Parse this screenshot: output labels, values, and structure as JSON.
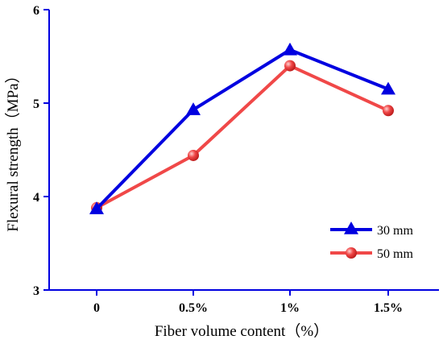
{
  "chart_data": {
    "type": "line",
    "categories": [
      "0",
      "0.5%",
      "1%",
      "1.5%"
    ],
    "xlabel": "Fiber volume content（%）",
    "ylabel": "Flexural strength（MPa）",
    "ylim": [
      3,
      6
    ],
    "yticks": [
      "3",
      "4",
      "5",
      "6"
    ],
    "grid": false,
    "legend_position": "bottom-right",
    "series": [
      {
        "name": "30 mm",
        "values": [
          3.87,
          4.93,
          5.57,
          5.15
        ],
        "color": "#0000e0",
        "marker": "triangle"
      },
      {
        "name": "50 mm",
        "values": [
          3.88,
          4.44,
          5.4,
          4.92
        ],
        "color": "#f04848",
        "marker": "circle"
      }
    ]
  }
}
